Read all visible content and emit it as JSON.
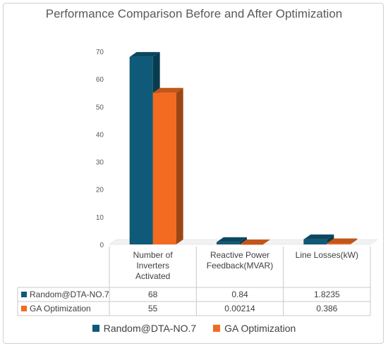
{
  "chart_data": {
    "type": "bar",
    "title": "Performance Comparison Before and After Optimization",
    "categories": [
      [
        "Number of",
        "Inverters",
        "Activated"
      ],
      [
        "Reactive Power",
        "Feedback(MVAR)"
      ],
      [
        "Line Losses(kW)"
      ]
    ],
    "series": [
      {
        "name": "Random@DTA-NO.7",
        "values": [
          68,
          0.84,
          1.8235
        ],
        "labels": [
          "68",
          "0.84",
          "1.8235"
        ],
        "color": "#0e5a78"
      },
      {
        "name": "GA Optimization",
        "values": [
          55,
          0.00214,
          0.386
        ],
        "labels": [
          "55",
          "0.00214",
          "0.386"
        ],
        "color": "#f26b21"
      }
    ],
    "ylim": [
      0,
      70
    ],
    "yticks": [
      0,
      10,
      20,
      30,
      40,
      50,
      60,
      70
    ],
    "grid": false,
    "legend": "bottom",
    "data_table": true
  }
}
